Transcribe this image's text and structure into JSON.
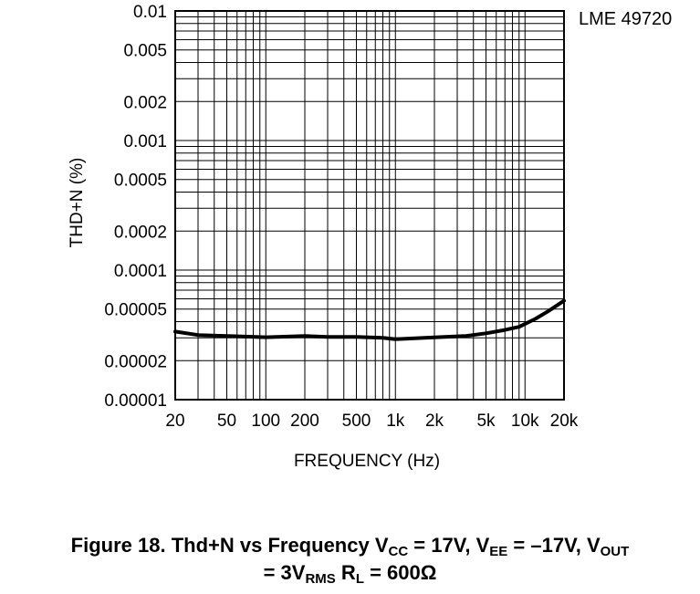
{
  "chart_data": {
    "type": "line",
    "part_label": "LME 49720",
    "xlabel": "FREQUENCY (Hz)",
    "ylabel": "THD+N (%)",
    "xscale": "log",
    "yscale": "log",
    "xlim": [
      20,
      20000
    ],
    "ylim": [
      1e-05,
      0.01
    ],
    "grid": true,
    "x_ticks": [
      {
        "v": 20,
        "label": "20"
      },
      {
        "v": 50,
        "label": "50"
      },
      {
        "v": 100,
        "label": "100"
      },
      {
        "v": 200,
        "label": "200"
      },
      {
        "v": 500,
        "label": "500"
      },
      {
        "v": 1000,
        "label": "1k"
      },
      {
        "v": 2000,
        "label": "2k"
      },
      {
        "v": 5000,
        "label": "5k"
      },
      {
        "v": 10000,
        "label": "10k"
      },
      {
        "v": 20000,
        "label": "20k"
      }
    ],
    "y_ticks": [
      {
        "v": 0.01,
        "label": "0.01"
      },
      {
        "v": 0.005,
        "label": "0.005"
      },
      {
        "v": 0.002,
        "label": "0.002"
      },
      {
        "v": 0.001,
        "label": "0.001"
      },
      {
        "v": 0.0005,
        "label": "0.0005"
      },
      {
        "v": 0.0002,
        "label": "0.0002"
      },
      {
        "v": 0.0001,
        "label": "0.0001"
      },
      {
        "v": 5e-05,
        "label": "0.00005"
      },
      {
        "v": 2e-05,
        "label": "0.00002"
      },
      {
        "v": 1e-05,
        "label": "0.00001"
      }
    ],
    "series": [
      {
        "color": "#000000",
        "points": [
          [
            20,
            3.35e-05
          ],
          [
            30,
            3.15e-05
          ],
          [
            50,
            3.1e-05
          ],
          [
            100,
            3.03e-05
          ],
          [
            200,
            3.1e-05
          ],
          [
            300,
            3.05e-05
          ],
          [
            500,
            3.05e-05
          ],
          [
            800,
            3e-05
          ],
          [
            1000,
            2.93e-05
          ],
          [
            2000,
            3.02e-05
          ],
          [
            3500,
            3.1e-05
          ],
          [
            5000,
            3.25e-05
          ],
          [
            7000,
            3.45e-05
          ],
          [
            9000,
            3.65e-05
          ],
          [
            12000,
            4.2e-05
          ],
          [
            15000,
            4.8e-05
          ],
          [
            20000,
            5.8e-05
          ]
        ]
      }
    ]
  },
  "caption": {
    "figure": "Figure 18. Thd+N vs Frequency V",
    "vcc_sub": "CC",
    "vcc_val": " = 17V, V",
    "vee_sub": "EE",
    "vee_val": " = –17V, V",
    "vout_sub": "OUT",
    "line2_a": "= 3V",
    "rms_sub": "RMS",
    "line2_b": " R",
    "rl_sub": "L",
    "line2_c": " = 600Ω"
  }
}
